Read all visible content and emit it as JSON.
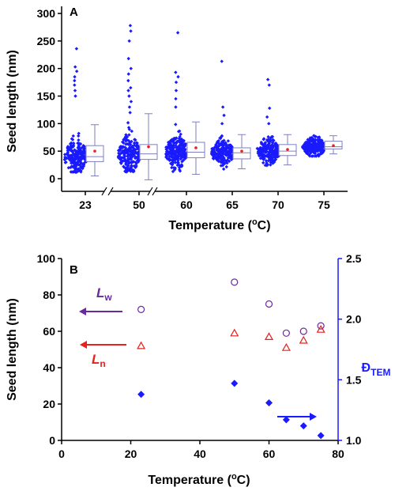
{
  "chart_data": [
    {
      "panel": "A",
      "type": "box",
      "ylabel": "Seed length (nm)",
      "xlabel_prefix": "Temperature (",
      "xlabel_sup": "o",
      "xlabel_suffix": "C)",
      "ylim": [
        -10,
        320
      ],
      "yticks": [
        0,
        50,
        100,
        150,
        200,
        250,
        300
      ],
      "categories": [
        "23",
        "50",
        "60",
        "65",
        "70",
        "75"
      ],
      "colors": {
        "points": "#1a1aff",
        "box": "#7f7fbf",
        "mean": "#e8201e"
      },
      "boxes": [
        {
          "category": "23",
          "min": 5,
          "q1": 31,
          "median": 40,
          "q3": 60,
          "max": 98,
          "mean": 50,
          "scatter_low": 10,
          "scatter_high": 135,
          "outliers": [
            150,
            160,
            170,
            178,
            185,
            195,
            203,
            236
          ]
        },
        {
          "category": "50",
          "min": -2,
          "q1": 35,
          "median": 45,
          "q3": 62,
          "max": 118,
          "mean": 58,
          "scatter_low": 12,
          "scatter_high": 110,
          "outliers": [
            120,
            130,
            140,
            150,
            160,
            165,
            178,
            190,
            200,
            218,
            250,
            268,
            278
          ]
        },
        {
          "category": "60",
          "min": 8,
          "q1": 38,
          "median": 48,
          "q3": 66,
          "max": 103,
          "mean": 56,
          "scatter_low": 12,
          "scatter_high": 120,
          "outliers": [
            130,
            145,
            160,
            175,
            185,
            193,
            265
          ]
        },
        {
          "category": "65",
          "min": 18,
          "q1": 36,
          "median": 47,
          "q3": 56,
          "max": 80,
          "mean": 50,
          "scatter_low": 15,
          "scatter_high": 90,
          "outliers": [
            100,
            115,
            130,
            213
          ]
        },
        {
          "category": "70",
          "min": 25,
          "q1": 42,
          "median": 50,
          "q3": 62,
          "max": 80,
          "mean": 53,
          "scatter_low": 22,
          "scatter_high": 90,
          "outliers": [
            100,
            112,
            128,
            170,
            180
          ]
        },
        {
          "category": "75",
          "min": 45,
          "q1": 54,
          "median": 58,
          "q3": 68,
          "max": 78,
          "mean": 60,
          "scatter_low": 40,
          "scatter_high": 92,
          "outliers": []
        }
      ]
    },
    {
      "panel": "B",
      "type": "scatter",
      "xlabel_prefix": "Temperature (",
      "xlabel_sup": "o",
      "xlabel_suffix": "C)",
      "ylabel": "Seed length (nm)",
      "y2label_main": "Đ",
      "y2label_sub": "TEM",
      "xlim": [
        0,
        80
      ],
      "ylim": [
        0,
        100
      ],
      "y2lim": [
        1.0,
        2.5
      ],
      "xticks": [
        0,
        20,
        40,
        60,
        80
      ],
      "yticks": [
        0,
        20,
        40,
        60,
        80,
        100
      ],
      "y2ticks": [
        "1.0",
        "1.5",
        "2.0",
        "2.5"
      ],
      "series": [
        {
          "name": "Lw",
          "marker": "circle-open",
          "color": "#6a2a9a",
          "axis": "left",
          "x": [
            23,
            50,
            60,
            65,
            70,
            75
          ],
          "y": [
            72,
            87,
            75,
            59,
            60,
            63
          ]
        },
        {
          "name": "Ln",
          "marker": "triangle-open",
          "color": "#e8201e",
          "axis": "left",
          "x": [
            23,
            50,
            60,
            65,
            70,
            75
          ],
          "y": [
            52,
            59,
            57,
            51,
            55,
            61
          ]
        },
        {
          "name": "ĐTEM",
          "marker": "diamond-filled",
          "color": "#1a1aff",
          "axis": "right",
          "x": [
            23,
            50,
            60,
            65,
            70,
            75
          ],
          "y": [
            1.38,
            1.47,
            1.31,
            1.17,
            1.12,
            1.04
          ]
        }
      ],
      "annotations": {
        "lw_main": "L",
        "lw_sub": "w",
        "ln_main": "L",
        "ln_sub": "n"
      }
    }
  ]
}
